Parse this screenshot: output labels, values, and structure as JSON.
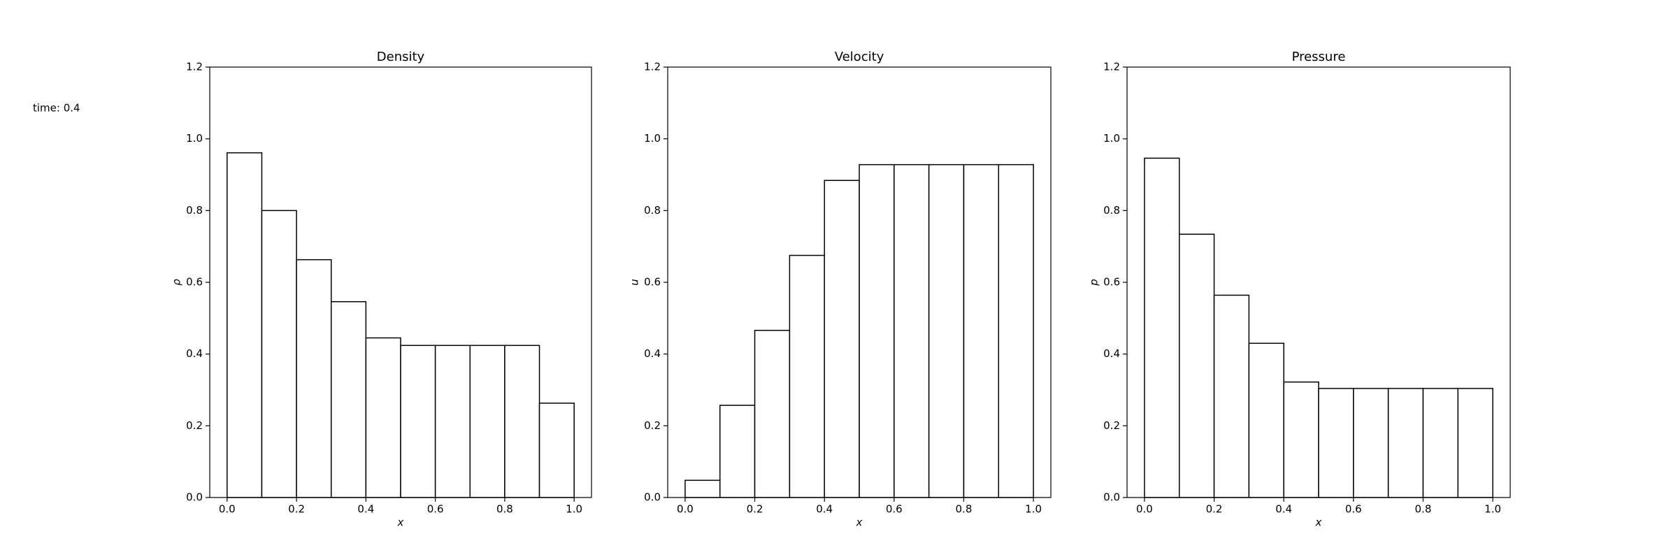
{
  "annotation": "time: 0.4",
  "chart_data": [
    {
      "type": "histogram",
      "title": "Density",
      "xlabel": "x",
      "ylabel": "ρ",
      "bins": [
        0,
        0.1,
        0.2,
        0.3,
        0.4,
        0.5,
        0.6,
        0.7,
        0.8,
        0.9,
        1
      ],
      "values": [
        0.961,
        0.8,
        0.663,
        0.546,
        0.445,
        0.424,
        0.424,
        0.424,
        0.424,
        0.263
      ],
      "color": "#ffffff",
      "edgecolor": "#000000",
      "xlim": [
        -0.05,
        1.05
      ],
      "ylim": [
        0,
        1.2
      ],
      "xticks": [
        {
          "value": 0,
          "label": "0.0"
        },
        0.2,
        0.4,
        0.6,
        0.8,
        {
          "value": 1,
          "label": "1.0"
        }
      ],
      "yticks": [
        {
          "value": 0,
          "label": "0.0"
        },
        0.2,
        0.4,
        0.6,
        0.8,
        {
          "value": 1,
          "label": "1.0"
        },
        1.2
      ]
    },
    {
      "type": "histogram",
      "title": "Velocity",
      "xlabel": "x",
      "ylabel": "u",
      "bins": [
        0,
        0.1,
        0.2,
        0.3,
        0.4,
        0.5,
        0.6,
        0.7,
        0.8,
        0.9,
        1
      ],
      "values": [
        0.048,
        0.257,
        0.466,
        0.675,
        0.884,
        0.928,
        0.928,
        0.928,
        0.928,
        0.928
      ],
      "color": "#ffffff",
      "edgecolor": "#000000",
      "xlim": [
        -0.05,
        1.05
      ],
      "ylim": [
        0,
        1.2
      ],
      "xticks": [
        {
          "value": 0,
          "label": "0.0"
        },
        0.2,
        0.4,
        0.6,
        0.8,
        {
          "value": 1,
          "label": "1.0"
        }
      ],
      "yticks": [
        {
          "value": 0,
          "label": "0.0"
        },
        0.2,
        0.4,
        0.6,
        0.8,
        {
          "value": 1,
          "label": "1.0"
        },
        1.2
      ]
    },
    {
      "type": "histogram",
      "title": "Pressure",
      "xlabel": "x",
      "ylabel": "p",
      "bins": [
        0,
        0.1,
        0.2,
        0.3,
        0.4,
        0.5,
        0.6,
        0.7,
        0.8,
        0.9,
        1
      ],
      "values": [
        0.946,
        0.734,
        0.564,
        0.43,
        0.322,
        0.304,
        0.304,
        0.304,
        0.304,
        0.304
      ],
      "color": "#ffffff",
      "edgecolor": "#000000",
      "xlim": [
        -0.05,
        1.05
      ],
      "ylim": [
        0,
        1.2
      ],
      "xticks": [
        {
          "value": 0,
          "label": "0.0"
        },
        0.2,
        0.4,
        0.6,
        0.8,
        {
          "value": 1,
          "label": "1.0"
        }
      ],
      "yticks": [
        {
          "value": 0,
          "label": "0.0"
        },
        0.2,
        0.4,
        0.6,
        0.8,
        {
          "value": 1,
          "label": "1.0"
        },
        1.2
      ]
    }
  ]
}
